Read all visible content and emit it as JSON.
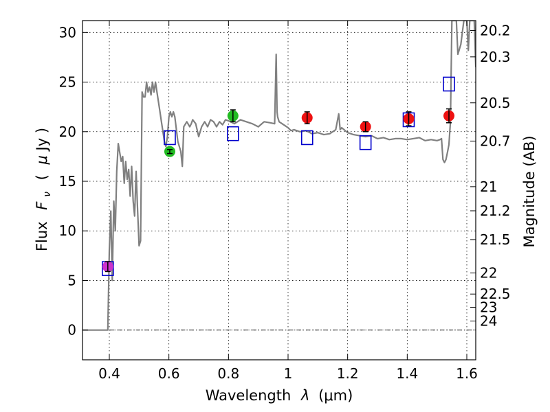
{
  "chart_data": {
    "type": "scatter",
    "xlabel_text": "Wavelength",
    "xlabel_symbol": "λ",
    "xlabel_unit": "(μm)",
    "ylabel_text": "Flux",
    "ylabel_symbol": "F",
    "ylabel_sub": "ν",
    "ylabel_unit_open": "(",
    "ylabel_mu": "μ",
    "ylabel_unit": "Jy )",
    "y2label": "Magnitude (AB)",
    "xlim": [
      0.31,
      1.63
    ],
    "ylim": [
      -3,
      31.2
    ],
    "xticks": [
      0.4,
      0.6,
      0.8,
      1.0,
      1.2,
      1.4,
      1.6
    ],
    "xtick_labels": [
      "0.4",
      "0.6",
      "0.8",
      "1",
      "1.2",
      "1.4",
      "1.6"
    ],
    "yticks": [
      0,
      5,
      10,
      15,
      20,
      25,
      30
    ],
    "ytick_labels": [
      "0",
      "5",
      "10",
      "15",
      "20",
      "25",
      "30"
    ],
    "y2ticks": [
      {
        "mag": 20.2,
        "label": "20.2"
      },
      {
        "mag": 20.3,
        "label": "20.3"
      },
      {
        "mag": 20.5,
        "label": "20.5"
      },
      {
        "mag": 20.7,
        "label": "20.7"
      },
      {
        "mag": 21,
        "label": "21"
      },
      {
        "mag": 21.2,
        "label": "21.2"
      },
      {
        "mag": 21.5,
        "label": "21.5"
      },
      {
        "mag": 22,
        "label": "22"
      },
      {
        "mag": 22.5,
        "label": "22.5"
      },
      {
        "mag": 23,
        "label": "23"
      },
      {
        "mag": 24,
        "label": "24"
      }
    ],
    "grid": true,
    "zero_line": true,
    "model_spectrum": {
      "color": "#808080",
      "x": [
        0.31,
        0.38,
        0.39,
        0.395,
        0.4,
        0.405,
        0.41,
        0.415,
        0.42,
        0.425,
        0.43,
        0.44,
        0.445,
        0.45,
        0.455,
        0.46,
        0.465,
        0.47,
        0.475,
        0.48,
        0.485,
        0.49,
        0.495,
        0.5,
        0.505,
        0.51,
        0.515,
        0.52,
        0.525,
        0.53,
        0.535,
        0.54,
        0.545,
        0.55,
        0.555,
        0.56,
        0.565,
        0.57,
        0.575,
        0.58,
        0.585,
        0.59,
        0.595,
        0.6,
        0.605,
        0.61,
        0.615,
        0.62,
        0.63,
        0.64,
        0.645,
        0.65,
        0.66,
        0.67,
        0.675,
        0.68,
        0.69,
        0.7,
        0.71,
        0.72,
        0.73,
        0.74,
        0.75,
        0.76,
        0.77,
        0.78,
        0.79,
        0.8,
        0.82,
        0.84,
        0.86,
        0.88,
        0.9,
        0.92,
        0.94,
        0.955,
        0.96,
        0.963,
        0.965,
        0.968,
        0.97,
        0.99,
        1.0,
        1.01,
        1.02,
        1.04,
        1.06,
        1.08,
        1.1,
        1.12,
        1.14,
        1.16,
        1.17,
        1.175,
        1.18,
        1.2,
        1.22,
        1.24,
        1.26,
        1.28,
        1.3,
        1.32,
        1.34,
        1.36,
        1.38,
        1.4,
        1.42,
        1.44,
        1.46,
        1.48,
        1.5,
        1.51,
        1.515,
        1.52,
        1.525,
        1.53,
        1.535,
        1.54,
        1.545,
        1.55,
        1.555,
        1.56,
        1.565,
        1.57,
        1.58,
        1.59,
        1.6,
        1.605,
        1.61,
        1.615,
        1.62,
        1.625,
        1.63
      ],
      "y": [
        0,
        0,
        0,
        0,
        8,
        12,
        5,
        13,
        10,
        16,
        18.8,
        17,
        17.5,
        14.8,
        17,
        15.2,
        16.2,
        13.5,
        16.5,
        13,
        11.5,
        16,
        12,
        8.5,
        9,
        24,
        23.5,
        23.5,
        25,
        24,
        24.5,
        23.7,
        25,
        24,
        25,
        24,
        23,
        22,
        21,
        20,
        19,
        18.5,
        19.5,
        21.5,
        22,
        21.5,
        22,
        21.5,
        19,
        18,
        16.5,
        20.5,
        21,
        20.5,
        20.8,
        21.2,
        20.8,
        19.5,
        20.5,
        21,
        20.5,
        21.2,
        21,
        20.5,
        21,
        20.7,
        21.2,
        21.1,
        20.8,
        21.2,
        21,
        20.8,
        20.5,
        21,
        20.9,
        20.8,
        27.8,
        22,
        21.5,
        21.2,
        21,
        20.6,
        20.4,
        20.1,
        20.2,
        20,
        20.1,
        19.8,
        19.9,
        19.7,
        19.8,
        20.2,
        21.8,
        20.2,
        20.4,
        19.9,
        19.7,
        19.6,
        19.5,
        19.6,
        19.3,
        19.4,
        19.2,
        19.3,
        19.3,
        19.2,
        19.3,
        19.4,
        19.1,
        19.2,
        19.1,
        19.2,
        19.3,
        17.2,
        16.9,
        17.2,
        17.9,
        18.7,
        21,
        31.2,
        31.2,
        31.2,
        31.2,
        27.8,
        28.8,
        31.2,
        31.2,
        28.2,
        31.2,
        31.2,
        31.2,
        31.2,
        26.5
      ]
    },
    "observed_points": [
      {
        "x": 0.395,
        "y": 6.4,
        "err": 0.5,
        "color": "#cc33cc"
      },
      {
        "x": 0.603,
        "y": 18.0,
        "err": 0.2,
        "color": "#22bb22"
      },
      {
        "x": 0.815,
        "y": 21.6,
        "err": 0.6,
        "color": "#22bb22"
      },
      {
        "x": 1.064,
        "y": 21.4,
        "err": 0.6,
        "color": "#ee1111"
      },
      {
        "x": 1.26,
        "y": 20.5,
        "err": 0.5,
        "color": "#ee1111"
      },
      {
        "x": 1.405,
        "y": 21.3,
        "err": 0.7,
        "color": "#ee1111"
      },
      {
        "x": 1.54,
        "y": 21.6,
        "err": 0.7,
        "color": "#ee1111"
      }
    ],
    "synthetic_points": [
      {
        "x": 0.395,
        "y": 6.2,
        "color": "#0000cc"
      },
      {
        "x": 0.603,
        "y": 19.4,
        "color": "#0000cc"
      },
      {
        "x": 0.815,
        "y": 19.8,
        "color": "#0000cc"
      },
      {
        "x": 1.064,
        "y": 19.4,
        "color": "#0000cc"
      },
      {
        "x": 1.26,
        "y": 18.9,
        "color": "#0000cc"
      },
      {
        "x": 1.405,
        "y": 21.2,
        "color": "#0000cc"
      },
      {
        "x": 1.54,
        "y": 24.8,
        "color": "#0000cc"
      }
    ]
  }
}
